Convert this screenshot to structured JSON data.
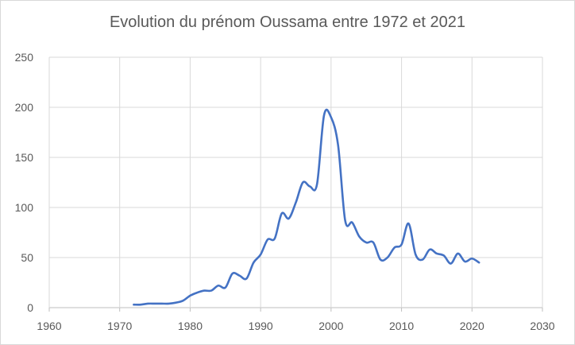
{
  "chart_data": {
    "type": "line",
    "title": "Evolution du prénom Oussama entre 1972 et 2021",
    "xlabel": "",
    "ylabel": "",
    "xlim": [
      1960,
      2030
    ],
    "ylim": [
      0,
      250
    ],
    "x_ticks": [
      1960,
      1970,
      1980,
      1990,
      2000,
      2010,
      2020,
      2030
    ],
    "y_ticks": [
      0,
      50,
      100,
      150,
      200,
      250
    ],
    "grid": true,
    "legend": "none",
    "series": [
      {
        "color": "#4472c4",
        "x": [
          1972,
          1973,
          1974,
          1975,
          1976,
          1977,
          1978,
          1979,
          1980,
          1981,
          1982,
          1983,
          1984,
          1985,
          1986,
          1987,
          1988,
          1989,
          1990,
          1991,
          1992,
          1993,
          1994,
          1995,
          1996,
          1997,
          1998,
          1999,
          2000,
          2001,
          2002,
          2003,
          2004,
          2005,
          2006,
          2007,
          2008,
          2009,
          2010,
          2011,
          2012,
          2013,
          2014,
          2015,
          2016,
          2017,
          2018,
          2019,
          2020,
          2021
        ],
        "y": [
          3,
          3,
          4,
          4,
          4,
          4,
          5,
          7,
          12,
          15,
          17,
          17,
          22,
          20,
          34,
          32,
          29,
          45,
          53,
          68,
          69,
          94,
          89,
          105,
          125,
          121,
          123,
          192,
          190,
          162,
          87,
          85,
          71,
          65,
          65,
          48,
          50,
          60,
          63,
          84,
          53,
          48,
          58,
          54,
          52,
          44,
          54,
          46,
          49,
          45
        ]
      }
    ]
  }
}
